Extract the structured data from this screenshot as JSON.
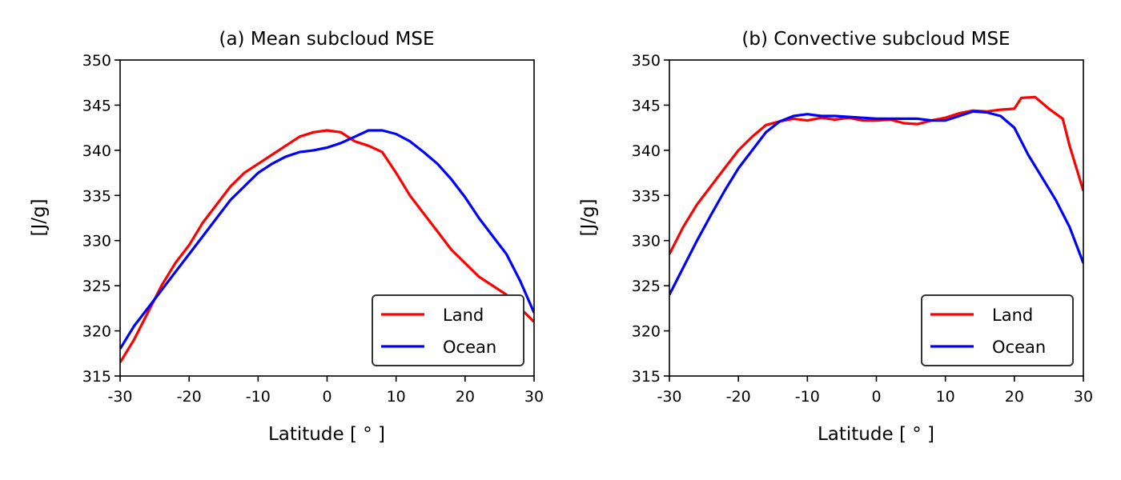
{
  "chart_data": [
    {
      "type": "line",
      "title": "(a) Mean subcloud MSE",
      "xlabel": "Latitude [ ° ]",
      "ylabel": "[J/g]",
      "xlim": [
        -30,
        30
      ],
      "ylim": [
        315,
        350
      ],
      "x_ticks": [
        -30,
        -20,
        -10,
        0,
        10,
        20,
        30
      ],
      "x_tick_labels": [
        "-30",
        "-20",
        "-10",
        "0",
        "10",
        "20",
        "30"
      ],
      "y_ticks": [
        315,
        320,
        325,
        330,
        335,
        340,
        345,
        350
      ],
      "y_tick_labels": [
        "315",
        "320",
        "325",
        "330",
        "335",
        "340",
        "345",
        "350"
      ],
      "grid": false,
      "legend": "lower-right",
      "series": [
        {
          "name": "Land",
          "color": "#ff0000",
          "points": [
            [
              -30,
              316.5
            ],
            [
              -28,
              319.0
            ],
            [
              -26,
              322.0
            ],
            [
              -24,
              325.0
            ],
            [
              -22,
              327.5
            ],
            [
              -20,
              329.5
            ],
            [
              -18,
              332.0
            ],
            [
              -16,
              334.0
            ],
            [
              -14,
              336.0
            ],
            [
              -12,
              337.5
            ],
            [
              -10,
              338.5
            ],
            [
              -8,
              339.5
            ],
            [
              -6,
              340.5
            ],
            [
              -4,
              341.5
            ],
            [
              -2,
              342.0
            ],
            [
              0,
              342.2
            ],
            [
              2,
              342.0
            ],
            [
              4,
              341.0
            ],
            [
              6,
              340.5
            ],
            [
              8,
              339.8
            ],
            [
              10,
              337.5
            ],
            [
              12,
              335.0
            ],
            [
              14,
              333.0
            ],
            [
              16,
              331.0
            ],
            [
              18,
              329.0
            ],
            [
              20,
              327.5
            ],
            [
              22,
              326.0
            ],
            [
              24,
              325.0
            ],
            [
              26,
              324.0
            ],
            [
              28,
              322.5
            ],
            [
              30,
              321.0
            ]
          ]
        },
        {
          "name": "Ocean",
          "color": "#0000ff",
          "points": [
            [
              -30,
              318.0
            ],
            [
              -28,
              320.5
            ],
            [
              -26,
              322.5
            ],
            [
              -24,
              324.5
            ],
            [
              -22,
              326.5
            ],
            [
              -20,
              328.5
            ],
            [
              -18,
              330.5
            ],
            [
              -16,
              332.5
            ],
            [
              -14,
              334.5
            ],
            [
              -12,
              336.0
            ],
            [
              -10,
              337.5
            ],
            [
              -8,
              338.5
            ],
            [
              -6,
              339.3
            ],
            [
              -4,
              339.8
            ],
            [
              -2,
              340.0
            ],
            [
              0,
              340.3
            ],
            [
              2,
              340.8
            ],
            [
              4,
              341.5
            ],
            [
              6,
              342.2
            ],
            [
              8,
              342.2
            ],
            [
              10,
              341.8
            ],
            [
              12,
              341.0
            ],
            [
              14,
              339.8
            ],
            [
              16,
              338.5
            ],
            [
              18,
              336.8
            ],
            [
              20,
              334.8
            ],
            [
              22,
              332.5
            ],
            [
              24,
              330.5
            ],
            [
              26,
              328.5
            ],
            [
              28,
              325.5
            ],
            [
              30,
              322.0
            ]
          ]
        }
      ]
    },
    {
      "type": "line",
      "title": "(b) Convective subcloud MSE",
      "xlabel": "Latitude [ ° ]",
      "ylabel": "[J/g]",
      "xlim": [
        -30,
        30
      ],
      "ylim": [
        315,
        350
      ],
      "x_ticks": [
        -30,
        -20,
        -10,
        0,
        10,
        20,
        30
      ],
      "x_tick_labels": [
        "-30",
        "-20",
        "-10",
        "0",
        "10",
        "20",
        "30"
      ],
      "y_ticks": [
        315,
        320,
        325,
        330,
        335,
        340,
        345,
        350
      ],
      "y_tick_labels": [
        "315",
        "320",
        "325",
        "330",
        "335",
        "340",
        "345",
        "350"
      ],
      "grid": false,
      "legend": "lower-right",
      "series": [
        {
          "name": "Land",
          "color": "#ff0000",
          "points": [
            [
              -30,
              328.5
            ],
            [
              -28,
              331.5
            ],
            [
              -26,
              334.0
            ],
            [
              -24,
              336.0
            ],
            [
              -22,
              338.0
            ],
            [
              -20,
              340.0
            ],
            [
              -18,
              341.5
            ],
            [
              -16,
              342.8
            ],
            [
              -14,
              343.2
            ],
            [
              -12,
              343.5
            ],
            [
              -10,
              343.3
            ],
            [
              -8,
              343.6
            ],
            [
              -6,
              343.4
            ],
            [
              -4,
              343.6
            ],
            [
              -2,
              343.3
            ],
            [
              0,
              343.3
            ],
            [
              2,
              343.4
            ],
            [
              4,
              343.0
            ],
            [
              6,
              342.9
            ],
            [
              8,
              343.3
            ],
            [
              10,
              343.6
            ],
            [
              12,
              344.1
            ],
            [
              14,
              344.4
            ],
            [
              16,
              344.3
            ],
            [
              18,
              344.5
            ],
            [
              20,
              344.6
            ],
            [
              21,
              345.8
            ],
            [
              23,
              345.9
            ],
            [
              25,
              344.6
            ],
            [
              27,
              343.5
            ],
            [
              28,
              340.5
            ],
            [
              30,
              335.5
            ]
          ]
        },
        {
          "name": "Ocean",
          "color": "#0000ff",
          "points": [
            [
              -30,
              324.0
            ],
            [
              -28,
              327.0
            ],
            [
              -26,
              330.0
            ],
            [
              -24,
              332.8
            ],
            [
              -22,
              335.5
            ],
            [
              -20,
              338.0
            ],
            [
              -18,
              340.0
            ],
            [
              -16,
              342.0
            ],
            [
              -14,
              343.2
            ],
            [
              -12,
              343.8
            ],
            [
              -10,
              344.0
            ],
            [
              -8,
              343.8
            ],
            [
              -6,
              343.8
            ],
            [
              -4,
              343.7
            ],
            [
              -2,
              343.6
            ],
            [
              0,
              343.5
            ],
            [
              2,
              343.5
            ],
            [
              4,
              343.5
            ],
            [
              6,
              343.5
            ],
            [
              8,
              343.3
            ],
            [
              10,
              343.3
            ],
            [
              12,
              343.8
            ],
            [
              14,
              344.3
            ],
            [
              16,
              344.2
            ],
            [
              18,
              343.8
            ],
            [
              20,
              342.5
            ],
            [
              22,
              339.5
            ],
            [
              24,
              337.0
            ],
            [
              26,
              334.5
            ],
            [
              28,
              331.5
            ],
            [
              30,
              327.5
            ]
          ]
        }
      ]
    }
  ]
}
